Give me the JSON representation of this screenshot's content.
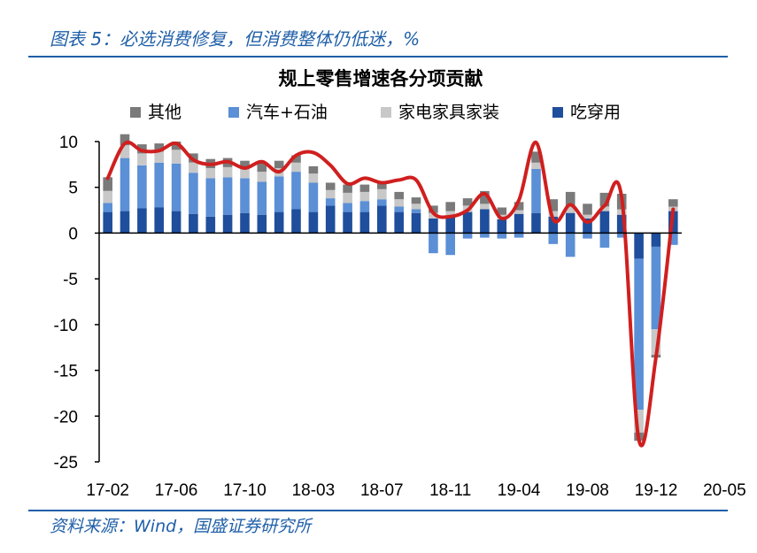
{
  "figure": {
    "caption": "图表 5：必选消费修复，但消费整体仍低迷，%",
    "source": "资料来源：Wind，国盛证券研究所"
  },
  "chart_data": {
    "type": "bar",
    "title": "规上零售增速各分项贡献",
    "stacked": true,
    "ylim": [
      -25,
      10
    ],
    "yticks": [
      10,
      5,
      0,
      -5,
      -10,
      -15,
      -20,
      -25
    ],
    "xticklabels": [
      "17-02",
      "17-06",
      "17-10",
      "18-03",
      "18-07",
      "18-11",
      "19-04",
      "19-08",
      "19-12",
      "20-05"
    ],
    "xtick_index": [
      0,
      4,
      8,
      12,
      16,
      20,
      24,
      28,
      32,
      36
    ],
    "legend_position": "top",
    "categories": [
      "17-02",
      "17-03",
      "17-04",
      "17-05",
      "17-06",
      "17-07",
      "17-08",
      "17-09",
      "17-10",
      "17-11",
      "17-12",
      "18-03",
      "18-04",
      "18-05",
      "18-06",
      "18-07",
      "18-08",
      "18-09",
      "18-10",
      "18-11",
      "18-12",
      "19-03",
      "19-04",
      "19-05",
      "19-06",
      "19-07",
      "19-08",
      "19-09",
      "19-10",
      "19-11",
      "19-12",
      "20-03",
      "20-04",
      "20-05"
    ],
    "series": [
      {
        "name": "吃穿用",
        "color": "#1f4e9c",
        "values": [
          2.3,
          2.4,
          2.7,
          2.8,
          2.4,
          2.1,
          1.8,
          2.0,
          2.2,
          2.0,
          2.3,
          2.6,
          2.3,
          3.0,
          2.3,
          2.3,
          3.0,
          2.3,
          2.2,
          1.6,
          1.9,
          2.3,
          2.6,
          1.5,
          2.1,
          2.2,
          1.8,
          2.2,
          1.6,
          2.4,
          2.0,
          -2.8,
          -1.5,
          2.4
        ]
      },
      {
        "name": "汽车+石油",
        "color": "#5b8fd6",
        "values": [
          1.0,
          5.8,
          4.7,
          4.9,
          5.2,
          4.5,
          4.2,
          4.1,
          3.8,
          3.6,
          3.9,
          4.1,
          3.2,
          0.8,
          1.0,
          1.2,
          0.7,
          0.6,
          0.4,
          -2.2,
          -2.4,
          -0.6,
          -0.5,
          -0.6,
          -0.5,
          4.8,
          -1.2,
          -2.6,
          -0.6,
          -1.6,
          -0.5,
          -16.5,
          -9.0,
          -1.3
        ]
      },
      {
        "name": "家电家具家装",
        "color": "#c8c8c8",
        "values": [
          1.3,
          1.4,
          1.3,
          1.2,
          1.5,
          1.1,
          1.1,
          1.1,
          1.0,
          1.1,
          0.9,
          1.0,
          1.0,
          0.9,
          1.1,
          1.0,
          1.1,
          0.8,
          0.6,
          0.6,
          0.5,
          0.7,
          0.6,
          0.5,
          0.4,
          0.7,
          0.6,
          0.7,
          0.4,
          0.5,
          0.6,
          -2.5,
          -2.8,
          0.5
        ]
      },
      {
        "name": "其他",
        "color": "#7a7a7a",
        "values": [
          1.5,
          1.2,
          1.0,
          0.9,
          0.9,
          1.0,
          1.0,
          1.0,
          0.9,
          1.0,
          0.8,
          0.8,
          0.8,
          0.8,
          0.9,
          0.8,
          0.9,
          0.8,
          0.7,
          0.8,
          1.0,
          0.8,
          1.4,
          0.8,
          0.9,
          1.2,
          1.3,
          1.6,
          1.2,
          1.5,
          1.7,
          -0.9,
          -0.3,
          0.8
        ]
      }
    ],
    "total_line": {
      "color": "#d01f1f",
      "values": [
        6.0,
        9.8,
        9.0,
        9.0,
        9.8,
        8.0,
        7.5,
        7.8,
        7.1,
        7.8,
        6.7,
        8.5,
        8.8,
        7.4,
        5.4,
        6.0,
        5.5,
        5.8,
        5.8,
        2.2,
        1.8,
        2.5,
        4.3,
        1.6,
        3.6,
        9.9,
        1.5,
        3.1,
        1.2,
        3.0,
        3.8,
        -22.6,
        -13.5,
        2.6
      ]
    }
  }
}
